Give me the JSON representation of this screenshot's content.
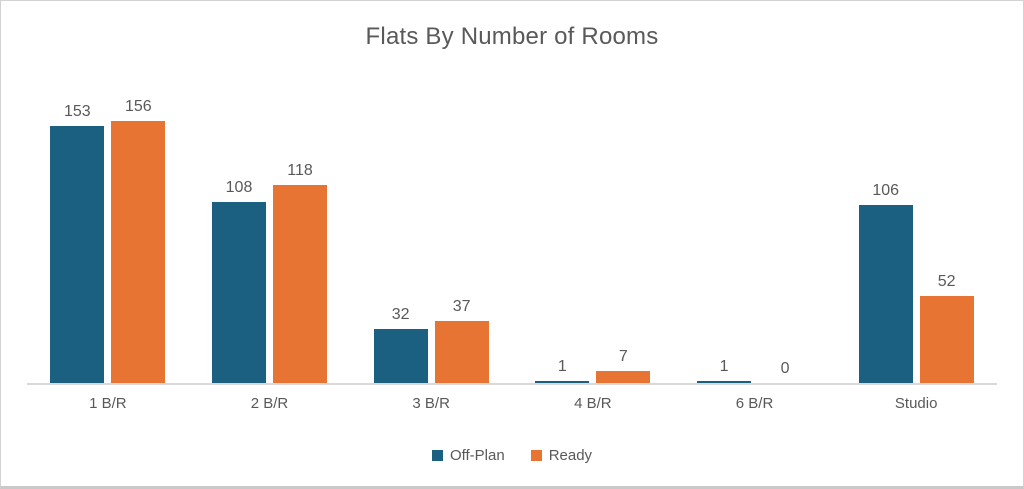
{
  "chart_data": {
    "type": "bar",
    "title": "Flats By Number of Rooms",
    "categories": [
      "1 B/R",
      "2 B/R",
      "3 B/R",
      "4 B/R",
      "6 B/R",
      "Studio"
    ],
    "series": [
      {
        "name": "Off-Plan",
        "color": "#1B6080",
        "values": [
          153,
          108,
          32,
          1,
          1,
          106
        ]
      },
      {
        "name": "Ready",
        "color": "#E87434",
        "values": [
          156,
          118,
          37,
          7,
          0,
          52
        ]
      }
    ],
    "value_labels": true,
    "grid": false,
    "y_axis_visible": false,
    "implied_y_max": 184,
    "legend_position": "bottom",
    "text_color": "#595959",
    "axis_line_color": "#D9D9D9",
    "background_color": "#FFFFFF"
  }
}
